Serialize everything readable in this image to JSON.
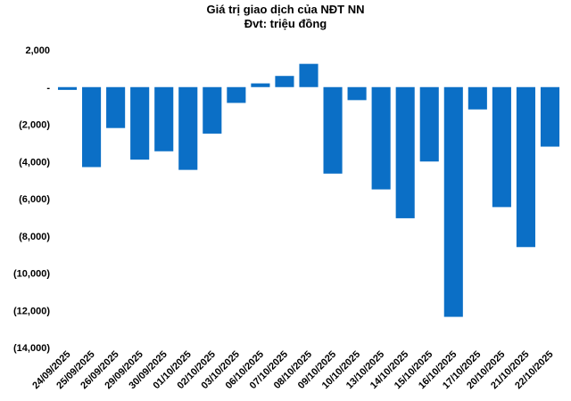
{
  "chart_data": {
    "type": "bar",
    "title": "Giá trị giao dịch của NĐT NN",
    "subtitle": "Đvt: triệu đồng",
    "xlabel": "",
    "ylabel": "",
    "ylim": [
      -14000,
      2000
    ],
    "yticks": [
      2000,
      0,
      -2000,
      -4000,
      -6000,
      -8000,
      -10000,
      -12000,
      -14000
    ],
    "ytick_labels": [
      "2,000",
      "-",
      "(2,000)",
      "(4,000)",
      "(6,000)",
      "(8,000)",
      "(10,000)",
      "(12,000)",
      "(14,000)"
    ],
    "grid": false,
    "legend": "none",
    "bar_color": "#0b6fc6",
    "categories": [
      "24/09/2025",
      "25/09/2025",
      "26/09/2025",
      "29/09/2025",
      "30/09/2025",
      "01/10/2025",
      "02/10/2025",
      "03/10/2025",
      "06/10/2025",
      "07/10/2025",
      "08/10/2025",
      "09/10/2025",
      "10/10/2025",
      "13/10/2025",
      "14/10/2025",
      "15/10/2025",
      "16/10/2025",
      "17/10/2025",
      "20/10/2025",
      "21/10/2025",
      "22/10/2025"
    ],
    "values": [
      -150,
      -4300,
      -2200,
      -3900,
      -3450,
      -4450,
      -2500,
      -850,
      200,
      600,
      1250,
      -4650,
      -700,
      -5500,
      -7050,
      -4000,
      -12350,
      -1200,
      -6450,
      -8600,
      -3200
    ]
  }
}
